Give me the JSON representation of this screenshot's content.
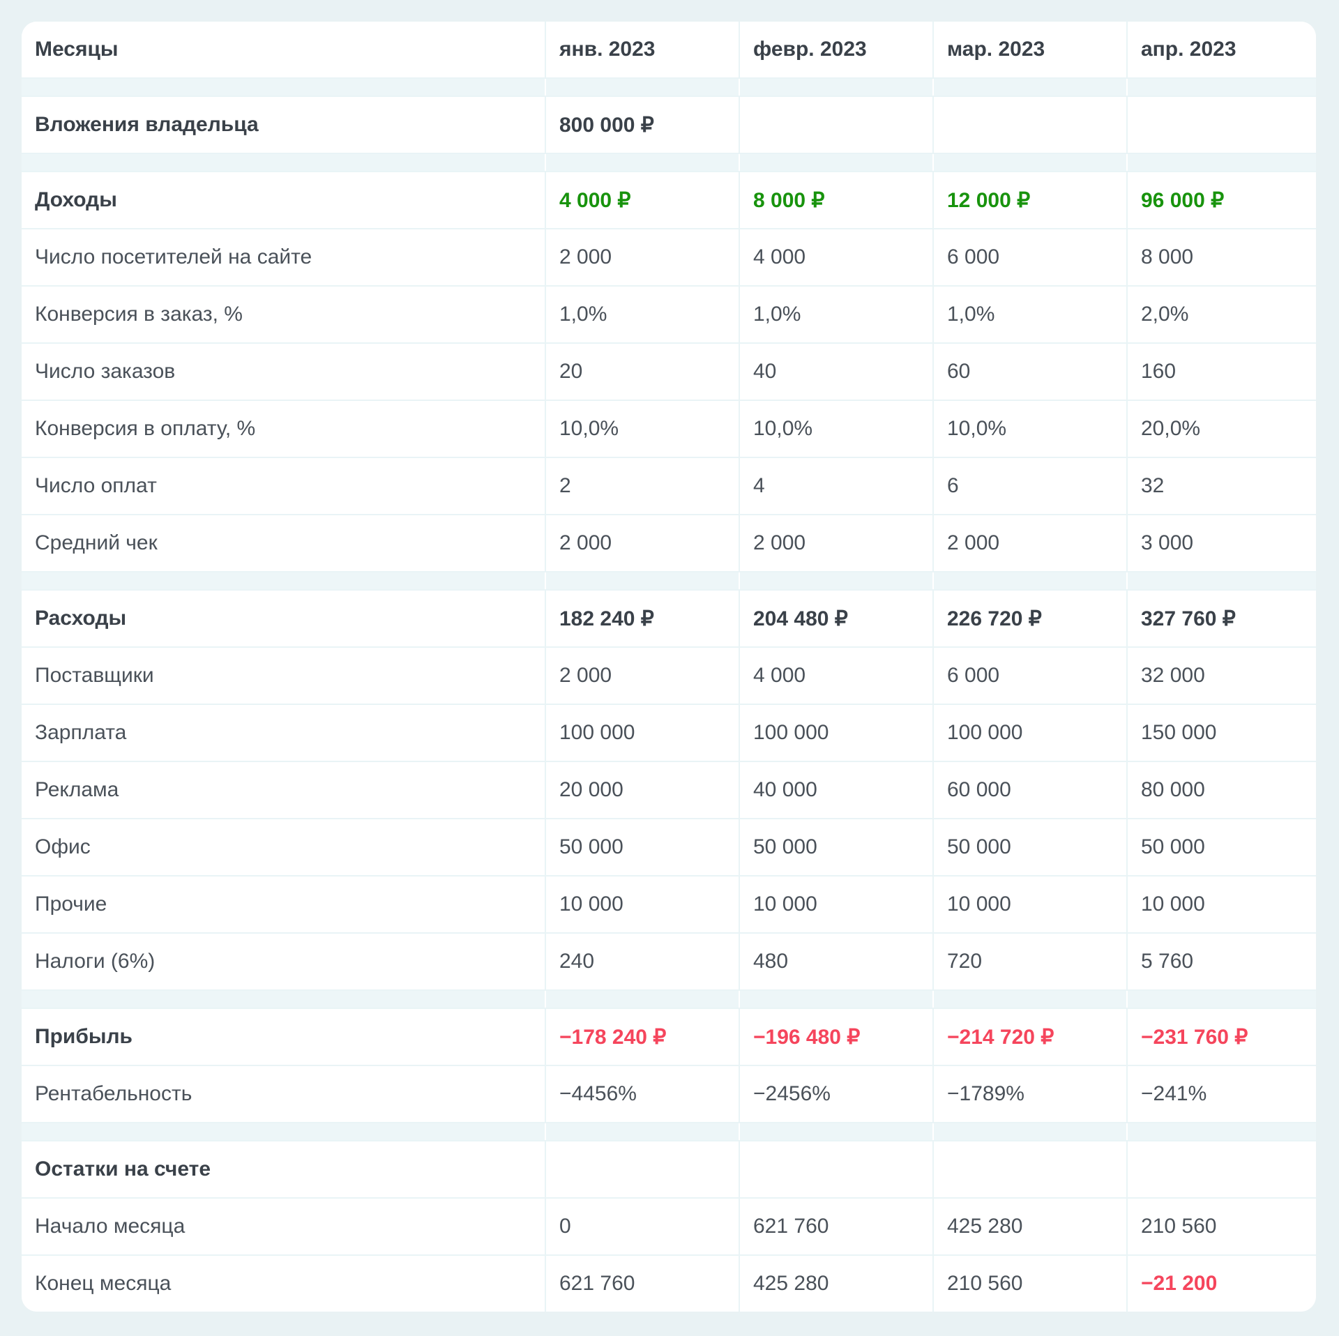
{
  "colors": {
    "page_background": "#e9f2f4",
    "card_background": "#ffffff",
    "spacer_background": "#edf6f8",
    "grid_line": "#e9f4f6",
    "heading_text": "#3a4149",
    "body_text": "#4a5159",
    "positive_green": "#18930d",
    "negative_red": "#f5455c"
  },
  "table": {
    "header": {
      "label": "Месяцы",
      "columns": [
        "янв. 2023",
        "февр. 2023",
        "мар. 2023",
        "апр. 2023"
      ]
    },
    "rows": [
      {
        "type": "spacer"
      },
      {
        "label": "Вложения владельца",
        "bold": true,
        "style": "bold",
        "values": [
          "800 000 ₽",
          "",
          "",
          ""
        ]
      },
      {
        "type": "spacer"
      },
      {
        "label": "Доходы",
        "bold": true,
        "style": "green",
        "values": [
          "4 000 ₽",
          "8 000 ₽",
          "12 000 ₽",
          "96 000 ₽"
        ]
      },
      {
        "label": "Число посетителей на сайте",
        "values": [
          "2 000",
          "4 000",
          "6 000",
          "8 000"
        ]
      },
      {
        "label": "Конверсия в заказ, %",
        "values": [
          "1,0%",
          "1,0%",
          "1,0%",
          "2,0%"
        ]
      },
      {
        "label": "Число заказов",
        "values": [
          "20",
          "40",
          "60",
          "160"
        ]
      },
      {
        "label": "Конверсия в оплату, %",
        "values": [
          "10,0%",
          "10,0%",
          "10,0%",
          "20,0%"
        ]
      },
      {
        "label": "Число оплат",
        "values": [
          "2",
          "4",
          "6",
          "32"
        ]
      },
      {
        "label": "Средний чек",
        "values": [
          "2 000",
          "2 000",
          "2 000",
          "3 000"
        ]
      },
      {
        "type": "spacer"
      },
      {
        "label": "Расходы",
        "bold": true,
        "style": "bold",
        "values": [
          "182 240 ₽",
          "204 480 ₽",
          "226 720 ₽",
          "327 760 ₽"
        ]
      },
      {
        "label": "Поставщики",
        "values": [
          "2 000",
          "4 000",
          "6 000",
          "32 000"
        ]
      },
      {
        "label": "Зарплата",
        "values": [
          "100 000",
          "100 000",
          "100 000",
          "150 000"
        ]
      },
      {
        "label": "Реклама",
        "values": [
          "20 000",
          "40 000",
          "60 000",
          "80 000"
        ]
      },
      {
        "label": "Офис",
        "values": [
          "50 000",
          "50 000",
          "50 000",
          "50 000"
        ]
      },
      {
        "label": "Прочие",
        "values": [
          "10 000",
          "10 000",
          "10 000",
          "10 000"
        ]
      },
      {
        "label": "Налоги (6%)",
        "values": [
          "240",
          "480",
          "720",
          "5 760"
        ]
      },
      {
        "type": "spacer"
      },
      {
        "label": "Прибыль",
        "bold": true,
        "style": "red",
        "values": [
          "−178 240 ₽",
          "−196 480 ₽",
          "−214 720 ₽",
          "−231 760 ₽"
        ]
      },
      {
        "label": "Рентабельность",
        "values": [
          "−4456%",
          "−2456%",
          "−1789%",
          "−241%"
        ]
      },
      {
        "type": "spacer"
      },
      {
        "label": "Остатки на счете",
        "bold": true,
        "values": [
          "",
          "",
          "",
          ""
        ]
      },
      {
        "label": "Начало месяца",
        "values": [
          "0",
          "621 760",
          "425 280",
          "210 560"
        ]
      },
      {
        "label": "Конец месяца",
        "values": [
          "621 760",
          "425 280",
          "210 560",
          "−21 200"
        ],
        "cell_styles": [
          null,
          null,
          null,
          "red"
        ]
      }
    ]
  }
}
